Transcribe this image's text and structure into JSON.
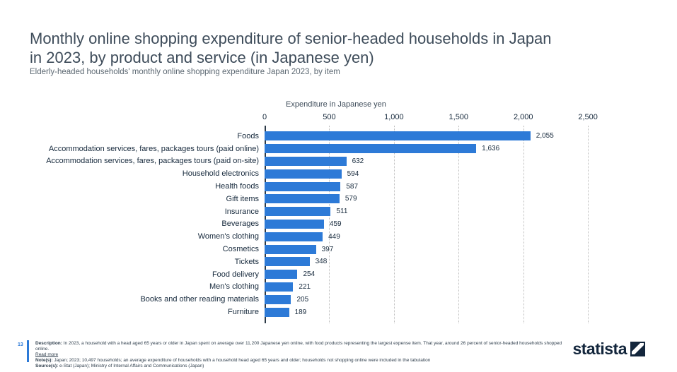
{
  "header": {
    "title_line1": "Monthly online shopping expenditure of senior-headed households in Japan",
    "title_line2": "in 2023, by product and service (in Japanese yen)",
    "subtitle": "Elderly-headed households' monthly online shopping expenditure Japan 2023, by item"
  },
  "chart_data": {
    "type": "bar",
    "orientation": "horizontal",
    "title": "Monthly online shopping expenditure of senior-headed households in Japan in 2023, by product and service (in Japanese yen)",
    "xlabel": "Expenditure in Japanese yen",
    "ylabel": "",
    "categories": [
      "Foods",
      "Accommodation services, fares, packages tours (paid online)",
      "Accommodation services, fares, packages tours (paid on-site)",
      "Household electronics",
      "Health foods",
      "Gift items",
      "Insurance",
      "Beverages",
      "Women's clothing",
      "Cosmetics",
      "Tickets",
      "Food delivery",
      "Men's clothing",
      "Books and other reading materials",
      "Furniture"
    ],
    "values": [
      2055,
      1636,
      632,
      594,
      587,
      579,
      511,
      459,
      449,
      397,
      348,
      254,
      221,
      205,
      189
    ],
    "value_labels": [
      "2,055",
      "1,636",
      "632",
      "594",
      "587",
      "579",
      "511",
      "459",
      "449",
      "397",
      "348",
      "254",
      "221",
      "205",
      "189"
    ],
    "ticks": [
      0,
      500,
      1000,
      1500,
      2000,
      2500
    ],
    "tick_labels": [
      "0",
      "500",
      "1,000",
      "1,500",
      "2,000",
      "2,500"
    ],
    "xlim": [
      0,
      2800
    ],
    "grid": "vertical-dotted",
    "legend": "none",
    "bar_color": "#2d7ad7"
  },
  "footer": {
    "page_number": "13",
    "description_label": "Description:",
    "description": "In 2023, a household with a head aged 65 years or older in Japan spent on average over 11,200 Japanese yen online, with food products representing the largest expense item. That year, around 26 percent of senior-headed households shopped online.",
    "read_more": "Read more",
    "notes_label": "Note(s):",
    "notes": "Japan; 2023; 10,497 households; an average expenditure of households with a household head aged 65 years and older; households not shopping online were included in the tabulation",
    "sources_label": "Source(s):",
    "sources": "e-Stat (Japan); Ministry of Internal Affairs and Communications (Japan)",
    "logo_text": "statista"
  },
  "colors": {
    "bar": "#2d7ad7",
    "accent": "#2d7ad7",
    "title_text": "#3e4c5a",
    "chart_text": "#16293c",
    "logo_navy": "#13263c",
    "gridline": "#bdbdbd"
  }
}
